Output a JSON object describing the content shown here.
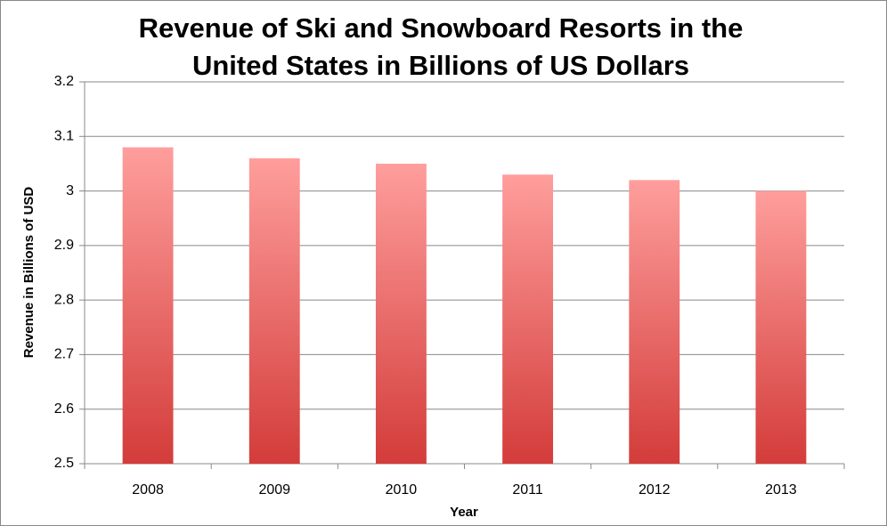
{
  "chart_data": {
    "type": "bar",
    "title": [
      "Revenue of Ski and Snowboard Resorts in the",
      "United States in Billions of US Dollars"
    ],
    "x_label": "Year",
    "y_label": "Revenue in Billions of USD",
    "categories": [
      "2008",
      "2009",
      "2010",
      "2011",
      "2012",
      "2013"
    ],
    "values": [
      3.08,
      3.06,
      3.05,
      3.03,
      3.02,
      3.0
    ],
    "color": [
      "#fe9e9c",
      "#d33c3a"
    ],
    "ylim": [
      2.5,
      3.2
    ],
    "yticks": [
      2.5,
      2.6,
      2.7,
      2.8,
      2.9,
      3,
      3.1,
      3.2
    ],
    "grid": true
  }
}
